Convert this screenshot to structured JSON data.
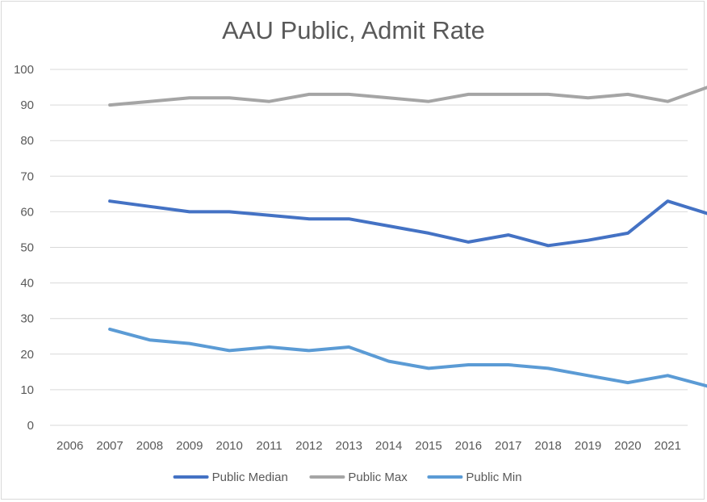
{
  "chart_data": {
    "type": "line",
    "title": "AAU Public, Admit Rate",
    "xlabel": "",
    "ylabel": "",
    "categories": [
      "2006",
      "2007",
      "2008",
      "2009",
      "2010",
      "2011",
      "2012",
      "2013",
      "2014",
      "2015",
      "2016",
      "2017",
      "2018",
      "2019",
      "2020",
      "2021"
    ],
    "x": [
      2007,
      2008,
      2009,
      2010,
      2011,
      2012,
      2013,
      2014,
      2015,
      2016,
      2017,
      2018,
      2019,
      2020,
      2021,
      2022
    ],
    "ylim": [
      0,
      100
    ],
    "yticks": [
      0,
      10,
      20,
      30,
      40,
      50,
      60,
      70,
      80,
      90,
      100
    ],
    "grid": true,
    "legend": "bottom",
    "series": [
      {
        "name": "Public Median",
        "color": "#4472c4",
        "values": [
          63,
          61.5,
          60,
          60,
          59,
          58,
          58,
          56,
          54,
          51.5,
          53.5,
          50.5,
          52,
          54,
          63,
          59.5
        ]
      },
      {
        "name": "Public Max",
        "color": "#a5a5a5",
        "values": [
          90,
          91,
          92,
          92,
          91,
          93,
          93,
          92,
          91,
          93,
          93,
          93,
          92,
          93,
          91,
          95
        ]
      },
      {
        "name": "Public Min",
        "color": "#5b9bd5",
        "values": [
          27,
          24,
          23,
          21,
          22,
          21,
          22,
          18,
          16,
          17,
          17,
          16,
          14,
          12,
          14,
          11
        ]
      }
    ]
  }
}
